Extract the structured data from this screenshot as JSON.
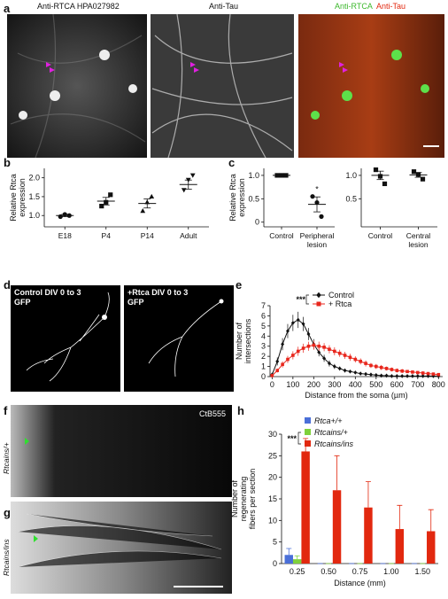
{
  "letters": [
    "a",
    "b",
    "c",
    "d",
    "e",
    "f",
    "g",
    "h"
  ],
  "images": {
    "a": {
      "captions": [
        "Anti-RTCA HPA027982",
        "Anti-Tau"
      ],
      "merge": [
        "Anti-RTCA",
        "Anti-Tau"
      ]
    },
    "d": {
      "left": [
        "Control DIV 0 to 3",
        "GFP"
      ],
      "right": [
        "+Rtca DIV 0 to 3",
        "GFP"
      ]
    },
    "f": {
      "caption": "CtB555",
      "genotype": "Rtcains/+"
    },
    "g": {
      "genotype": "Rtcains/ins"
    }
  },
  "chart_data": [
    {
      "type": "dot",
      "y_label": [
        "Relative Rtca",
        "expression"
      ],
      "categories": [
        "E18",
        "P4",
        "P14",
        "Adult"
      ],
      "markers": [
        "circle",
        "square",
        "triangle",
        "triangle-down"
      ],
      "points": [
        [
          0.97,
          1.03,
          1.0
        ],
        [
          1.25,
          1.35,
          1.55
        ],
        [
          1.12,
          1.35,
          1.5
        ],
        [
          1.68,
          1.95,
          2.07
        ]
      ],
      "means": [
        1.0,
        1.38,
        1.32,
        1.82
      ],
      "sems": [
        0.03,
        0.1,
        0.12,
        0.12
      ],
      "ylim": [
        0.7,
        2.25
      ],
      "yticks": [
        {
          "value": 1,
          "label": "1.0"
        },
        {
          "value": 1.5,
          "label": "1.5"
        },
        {
          "value": 2,
          "label": "2.0"
        }
      ]
    },
    {
      "type": "dot",
      "y_label": [
        "Relative Rtca",
        "expression"
      ],
      "categories": [
        "Control",
        "Peripheral lesion"
      ],
      "markers": [
        "square",
        "circle"
      ],
      "points": [
        [
          1.0,
          1.0,
          1.0
        ],
        [
          0.55,
          0.42,
          0.12
        ]
      ],
      "means": [
        1.0,
        0.38
      ],
      "sems": [
        0.0,
        0.16
      ],
      "annotation": {
        "text": "*",
        "category": 1
      },
      "ylim": [
        -0.1,
        1.15
      ],
      "yticks": [
        0,
        0.5,
        {
          "value": 1,
          "label": "1.0"
        }
      ]
    },
    {
      "type": "dot",
      "categories": [
        "Control",
        "Central lesion"
      ],
      "markers": [
        "square",
        "square"
      ],
      "points": [
        [
          1.12,
          0.98,
          0.82
        ],
        [
          1.08,
          1.02,
          0.92
        ]
      ],
      "means": [
        1.0,
        1.01
      ],
      "sems": [
        0.09,
        0.05
      ],
      "ylim": [
        -0.1,
        1.15
      ],
      "yticks": [
        0.5,
        {
          "value": 1,
          "label": "1.0"
        }
      ]
    },
    {
      "type": "line",
      "x_label": "Distance from the soma (µm)",
      "y_label": [
        "Number of",
        "intersections"
      ],
      "annotation": "***",
      "x": [
        0,
        25,
        50,
        75,
        100,
        125,
        150,
        175,
        200,
        225,
        250,
        275,
        300,
        325,
        350,
        375,
        400,
        425,
        450,
        475,
        500,
        525,
        550,
        575,
        600,
        625,
        650,
        675,
        700,
        725,
        750,
        775,
        800
      ],
      "series": [
        {
          "name": "Control",
          "color": "#111111",
          "marker": "diamond",
          "values": [
            0.2,
            1.5,
            3.2,
            4.5,
            5.3,
            5.6,
            5.2,
            4.2,
            3.2,
            2.4,
            1.8,
            1.3,
            1.0,
            0.8,
            0.6,
            0.5,
            0.4,
            0.3,
            0.25,
            0.2,
            0.15,
            0.1,
            0.1,
            0.05,
            0.05,
            0.05,
            0.05,
            0.05,
            0.05,
            0.05,
            0.05,
            0.05,
            0.05
          ],
          "errors": [
            0.1,
            0.4,
            0.6,
            0.7,
            0.8,
            0.8,
            0.7,
            0.6,
            0.5,
            0.4,
            0.35,
            0.3,
            0.25,
            0.2,
            0.2,
            0.15,
            0.15,
            0.1,
            0.1,
            0.1,
            0.1,
            0.05,
            0.05,
            0.05,
            0.05,
            0.05,
            0.05,
            0.05,
            0.05,
            0.05,
            0.05,
            0.05,
            0.05
          ]
        },
        {
          "name": "+ Rtca",
          "color": "#e8261c",
          "marker": "square",
          "values": [
            0.1,
            0.6,
            1.2,
            1.7,
            2.1,
            2.5,
            2.8,
            3.0,
            3.1,
            3.0,
            2.9,
            2.7,
            2.5,
            2.3,
            2.1,
            1.9,
            1.7,
            1.5,
            1.3,
            1.1,
            1.0,
            0.9,
            0.8,
            0.7,
            0.6,
            0.55,
            0.5,
            0.45,
            0.4,
            0.35,
            0.3,
            0.25,
            0.2
          ],
          "errors": [
            0.05,
            0.2,
            0.3,
            0.35,
            0.4,
            0.45,
            0.45,
            0.45,
            0.45,
            0.45,
            0.4,
            0.4,
            0.4,
            0.35,
            0.35,
            0.35,
            0.3,
            0.3,
            0.3,
            0.25,
            0.25,
            0.25,
            0.2,
            0.2,
            0.2,
            0.2,
            0.15,
            0.15,
            0.15,
            0.15,
            0.1,
            0.1,
            0.1
          ]
        }
      ],
      "xlim": [
        -10,
        820
      ],
      "xticks": [
        0,
        100,
        200,
        300,
        400,
        500,
        600,
        700,
        800
      ],
      "ylim": [
        0,
        7
      ],
      "yticks": [
        0,
        1,
        2,
        3,
        4,
        5,
        6,
        7
      ]
    },
    {
      "type": "bar",
      "x_label": "Distance (mm)",
      "y_label": [
        "Number of",
        "regenerating",
        "fibers per section"
      ],
      "annotation": "***",
      "categories": [
        "0.25",
        "0.50",
        "0.75",
        "1.00",
        "1.50"
      ],
      "series": [
        {
          "name": "Rtca+/+",
          "color": "#4a6fd8",
          "values": [
            2,
            0,
            0,
            0,
            0
          ],
          "errors": [
            1.5,
            0,
            0,
            0,
            0
          ]
        },
        {
          "name": "Rtcains/+",
          "color": "#7fd13b",
          "values": [
            1,
            0,
            0,
            0,
            0
          ],
          "errors": [
            0.8,
            0,
            0,
            0,
            0
          ]
        },
        {
          "name": "Rtcains/ins",
          "color": "#e2280f",
          "values": [
            26,
            17,
            13,
            8,
            7.5
          ],
          "errors": [
            3,
            8,
            6,
            5.5,
            5
          ]
        }
      ],
      "ylim": [
        0,
        30
      ],
      "yticks": [
        0,
        5,
        10,
        15,
        20,
        25,
        30
      ]
    }
  ]
}
